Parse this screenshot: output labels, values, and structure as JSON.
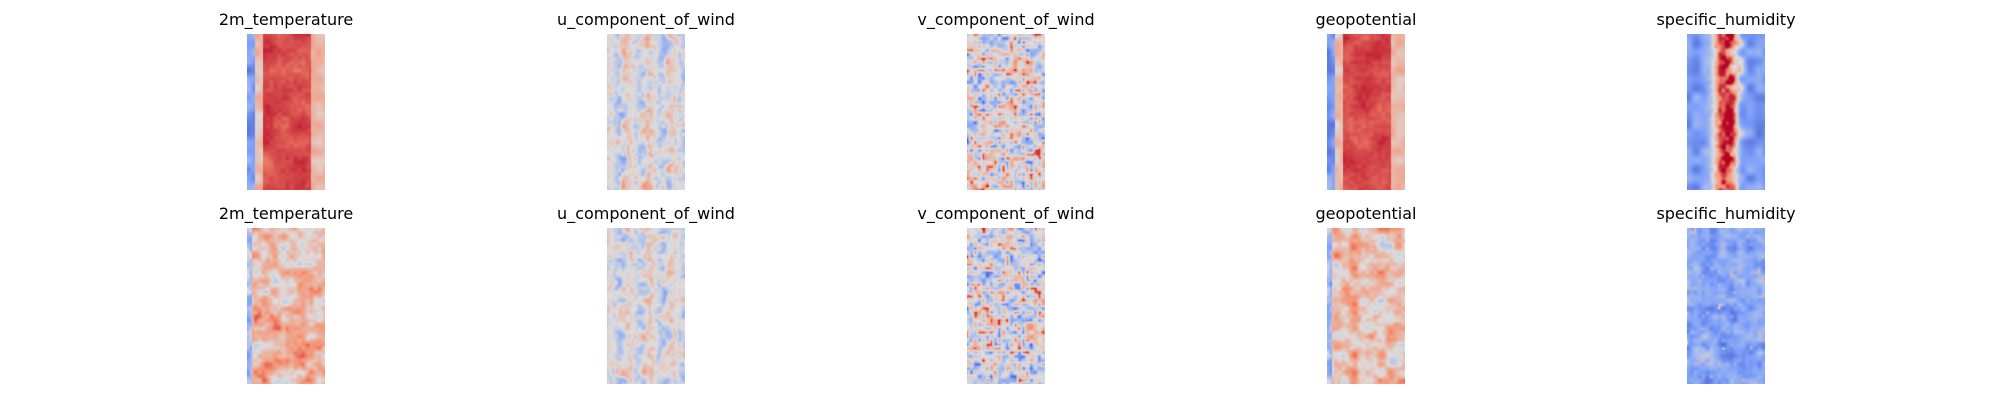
{
  "chart_data": [
    {
      "type": "heatmap",
      "colormap": "coolwarm",
      "axes": "off",
      "panels": [
        {
          "row": 1,
          "title": "2m_temperature",
          "pattern": "warm-band"
        },
        {
          "row": 1,
          "title": "u_component_of_wind",
          "pattern": "streaky"
        },
        {
          "row": 1,
          "title": "v_component_of_wind",
          "pattern": "speckled"
        },
        {
          "row": 1,
          "title": "geopotential",
          "pattern": "warm-band"
        },
        {
          "row": 1,
          "title": "specific_humidity",
          "pattern": "cool-with-warm-core"
        },
        {
          "row": 2,
          "title": "2m_temperature",
          "pattern": "warm-mottled"
        },
        {
          "row": 2,
          "title": "u_component_of_wind",
          "pattern": "streaky"
        },
        {
          "row": 2,
          "title": "v_component_of_wind",
          "pattern": "speckled"
        },
        {
          "row": 2,
          "title": "geopotential",
          "pattern": "warm-mottled"
        },
        {
          "row": 2,
          "title": "specific_humidity",
          "pattern": "cool-mottled"
        }
      ]
    }
  ]
}
